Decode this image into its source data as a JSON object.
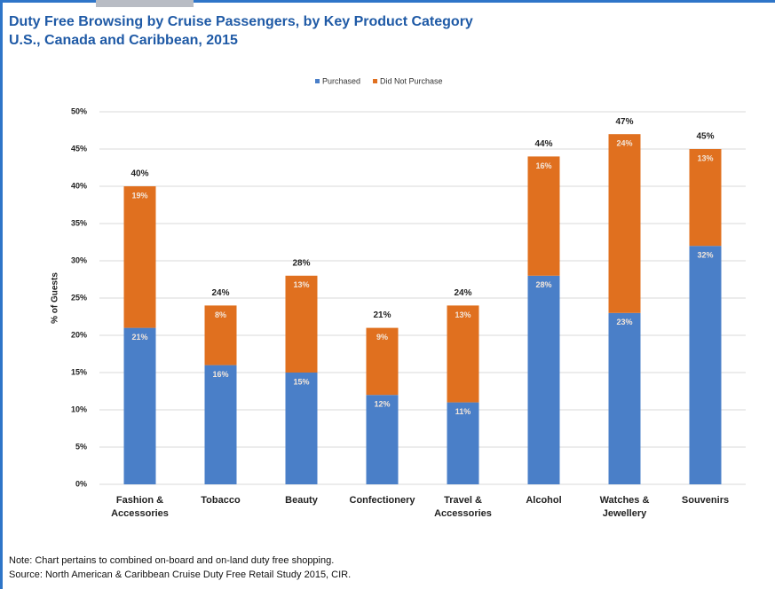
{
  "chart_data": {
    "type": "stacked_bar",
    "title": "Duty Free Browsing by Cruise Passengers, by Key Product Category",
    "subtitle": "U.S., Canada and Caribbean, 2015",
    "ylabel": "% of Guests",
    "categories": [
      "Fashion & Accessories",
      "Tobacco",
      "Beauty",
      "Confectionery",
      "Travel & Accessories",
      "Alcohol",
      "Watches & Jewellery",
      "Souvenirs"
    ],
    "series": [
      {
        "name": "Purchased",
        "color": "#4a7fc8",
        "values": [
          21,
          16,
          15,
          12,
          11,
          28,
          23,
          32
        ],
        "value_labels": [
          "21%",
          "16%",
          "15%",
          "12%",
          "11%",
          "28%",
          "23%",
          "32%"
        ]
      },
      {
        "name": "Did Not Purchase",
        "color": "#e0701f",
        "values": [
          19,
          8,
          13,
          9,
          13,
          16,
          24,
          13
        ],
        "value_labels": [
          "19%",
          "8%",
          "13%",
          "9%",
          "13%",
          "16%",
          "24%",
          "13%"
        ]
      }
    ],
    "totals": {
      "values": [
        40,
        24,
        28,
        21,
        24,
        44,
        47,
        45
      ],
      "value_labels": [
        "40%",
        "24%",
        "28%",
        "21%",
        "24%",
        "44%",
        "47%",
        "45%"
      ]
    },
    "ylim": [
      0,
      50
    ],
    "yticks": [
      {
        "value": 0,
        "label": "0%"
      },
      {
        "value": 5,
        "label": "5%"
      },
      {
        "value": 10,
        "label": "10%"
      },
      {
        "value": 15,
        "label": "15%"
      },
      {
        "value": 20,
        "label": "20%"
      },
      {
        "value": 25,
        "label": "25%"
      },
      {
        "value": 30,
        "label": "30%"
      },
      {
        "value": 35,
        "label": "35%"
      },
      {
        "value": 40,
        "label": "40%"
      },
      {
        "value": 45,
        "label": "45%"
      },
      {
        "value": 50,
        "label": "50%"
      }
    ],
    "grid": true,
    "legend": "top",
    "notes": [
      "Note: Chart pertains to combined on-board and on-land duty free shopping.",
      "Source: North American & Caribbean Cruise Duty Free Retail Study 2015, CIR."
    ]
  }
}
